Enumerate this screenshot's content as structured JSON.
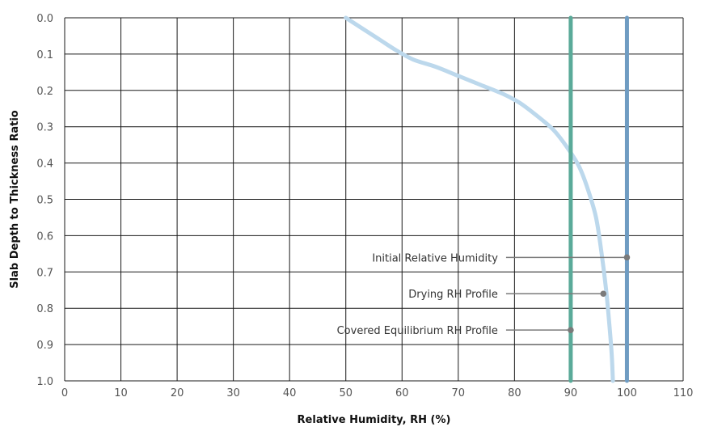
{
  "chart_data": {
    "type": "line",
    "title": "",
    "xlabel": "Relative Humidity, RH (%)",
    "ylabel": "Slab Depth to Thickness Ratio",
    "xlim": [
      0,
      110
    ],
    "ylim": [
      0,
      1.0
    ],
    "y_inverted": true,
    "grid": true,
    "x_ticks": [
      0,
      10,
      20,
      30,
      40,
      50,
      60,
      70,
      80,
      90,
      100,
      110
    ],
    "x_tick_labels": [
      "0",
      "10",
      "20",
      "30",
      "40",
      "50",
      "60",
      "70",
      "80",
      "90",
      "100",
      "110"
    ],
    "y_ticks": [
      0.0,
      0.1,
      0.2,
      0.3,
      0.4,
      0.5,
      0.6,
      0.7,
      0.8,
      0.9,
      1.0
    ],
    "y_tick_labels": [
      "0.0",
      "0.1",
      "0.2",
      "0.3",
      "0.4",
      "0.5",
      "0.6",
      "0.7",
      "0.8",
      "0.9",
      "1.0"
    ],
    "series": [
      {
        "key": "drying",
        "color": "#bcd8ec",
        "points": [
          [
            50,
            0.0
          ],
          [
            53,
            0.03
          ],
          [
            56,
            0.06
          ],
          [
            59,
            0.09
          ],
          [
            62,
            0.115
          ],
          [
            66,
            0.135
          ],
          [
            70,
            0.16
          ],
          [
            74,
            0.185
          ],
          [
            78,
            0.21
          ],
          [
            81,
            0.235
          ],
          [
            84,
            0.27
          ],
          [
            87,
            0.31
          ],
          [
            89.5,
            0.36
          ],
          [
            91.5,
            0.41
          ],
          [
            93,
            0.47
          ],
          [
            94.5,
            0.55
          ],
          [
            95.5,
            0.65
          ],
          [
            96.3,
            0.75
          ],
          [
            96.9,
            0.85
          ],
          [
            97.3,
            0.93
          ],
          [
            97.5,
            1.0
          ]
        ]
      },
      {
        "key": "covered_equilibrium",
        "color": "#5aaa99",
        "points": [
          [
            90,
            0.0
          ],
          [
            90,
            1.0
          ]
        ]
      },
      {
        "key": "initial",
        "color": "#6f9cc2",
        "points": [
          [
            100,
            0.0
          ],
          [
            100,
            1.0
          ]
        ]
      }
    ],
    "annotations": [
      {
        "text": "Initial Relative Humidity",
        "x": 100,
        "y": 0.66
      },
      {
        "text": "Drying RH Profile",
        "x": 95.8,
        "y": 0.76
      },
      {
        "text": "Covered Equilibrium RH Profile",
        "x": 90,
        "y": 0.86
      }
    ],
    "colors": {
      "grid": "#1a1a1a",
      "annotation_line": "#7a7a7a",
      "annotation_dot": "#7a7a7a"
    }
  }
}
